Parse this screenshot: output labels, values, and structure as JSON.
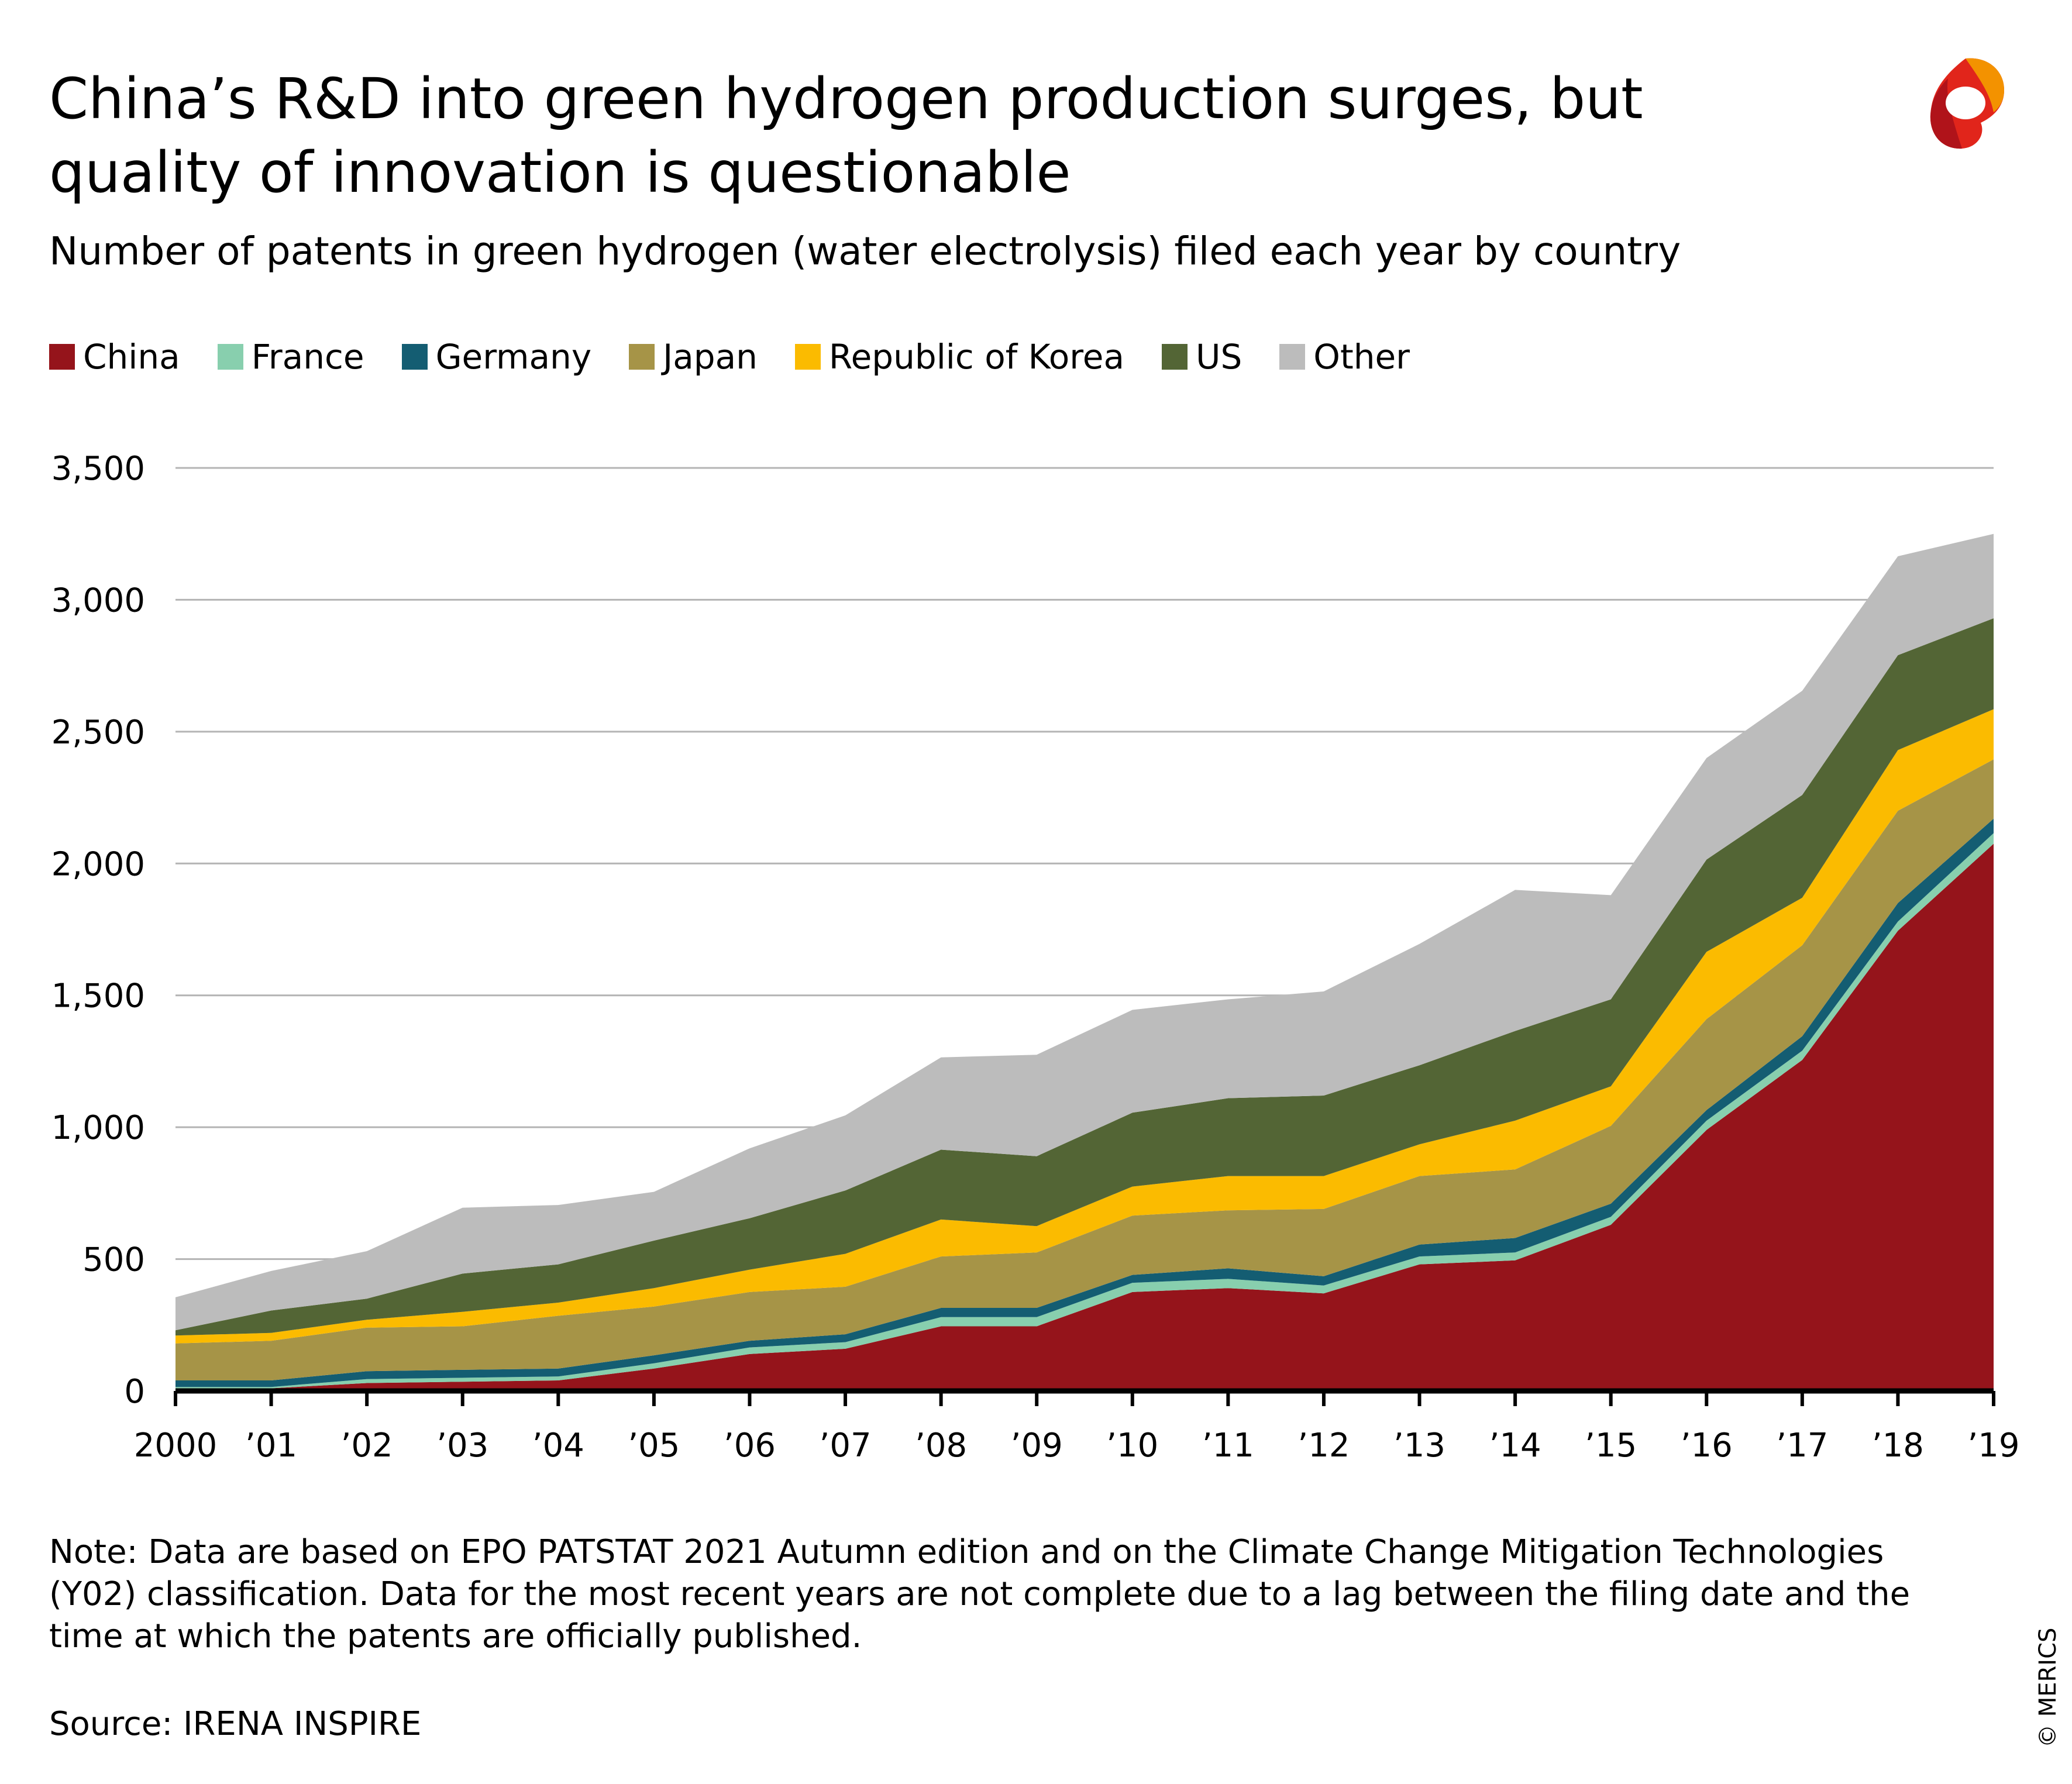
{
  "title": "China’s R&D into green hydrogen production surges, but quality of innovation is questionable",
  "subtitle": "Number of patents in green hydrogen (water electrolysis) filed each year by country",
  "note": "Note: Data are based on EPO PATSTAT 2021 Autumn edition and on the Climate Change Mitigation Technologies (Y02) classification. Data for the most recent years are not complete due to a lag between the filing date and the time at which the patents are officially published.",
  "source": "Source: IRENA INSPIRE",
  "copyright": "© MERICS",
  "logo_icon": "merics-logo-icon",
  "chart_data": {
    "type": "area",
    "stacked": true,
    "x": [
      "2000",
      "’01",
      "’02",
      "’03",
      "’04",
      "’05",
      "’06",
      "’07",
      "’08",
      "’09",
      "’10",
      "’11",
      "’12",
      "’13",
      "’14",
      "’15",
      "’16",
      "’17",
      "’18",
      "’19"
    ],
    "ylim": [
      0,
      3500
    ],
    "yticks": [
      0,
      500,
      1000,
      1500,
      2000,
      2500,
      3000,
      3500
    ],
    "ytick_labels": [
      "0",
      "500",
      "1,000",
      "1,500",
      "2,000",
      "2,500",
      "3,000",
      "3,500"
    ],
    "grid": true,
    "legend_position": "top-left",
    "series": [
      {
        "name": "China",
        "color": "#95141b",
        "values": [
          10,
          10,
          30,
          35,
          40,
          85,
          140,
          160,
          245,
          245,
          375,
          390,
          370,
          480,
          495,
          630,
          990,
          1255,
          1745,
          2075
        ]
      },
      {
        "name": "France",
        "color": "#88cfae",
        "values": [
          5,
          5,
          15,
          15,
          15,
          20,
          25,
          25,
          35,
          35,
          35,
          35,
          30,
          30,
          30,
          30,
          35,
          35,
          35,
          40
        ]
      },
      {
        "name": "Germany",
        "color": "#145d72",
        "values": [
          25,
          25,
          30,
          30,
          30,
          30,
          25,
          30,
          35,
          35,
          30,
          40,
          35,
          45,
          55,
          50,
          40,
          55,
          70,
          55
        ]
      },
      {
        "name": "Japan",
        "color": "#a69447",
        "values": [
          140,
          150,
          165,
          165,
          200,
          185,
          185,
          180,
          195,
          210,
          225,
          220,
          255,
          260,
          260,
          295,
          345,
          345,
          350,
          225
        ]
      },
      {
        "name": "Republic of Korea",
        "color": "#fbbb00",
        "values": [
          30,
          30,
          30,
          55,
          50,
          70,
          85,
          125,
          140,
          100,
          110,
          130,
          125,
          120,
          185,
          150,
          255,
          180,
          230,
          190
        ]
      },
      {
        "name": "US",
        "color": "#536535",
        "values": [
          20,
          85,
          80,
          145,
          145,
          180,
          195,
          240,
          265,
          265,
          280,
          295,
          305,
          300,
          340,
          330,
          350,
          390,
          360,
          345
        ]
      },
      {
        "name": "Other",
        "color": "#bcbcbc",
        "values": [
          125,
          150,
          180,
          250,
          225,
          185,
          265,
          285,
          350,
          385,
          390,
          375,
          395,
          460,
          535,
          395,
          385,
          395,
          375,
          320
        ]
      }
    ]
  }
}
